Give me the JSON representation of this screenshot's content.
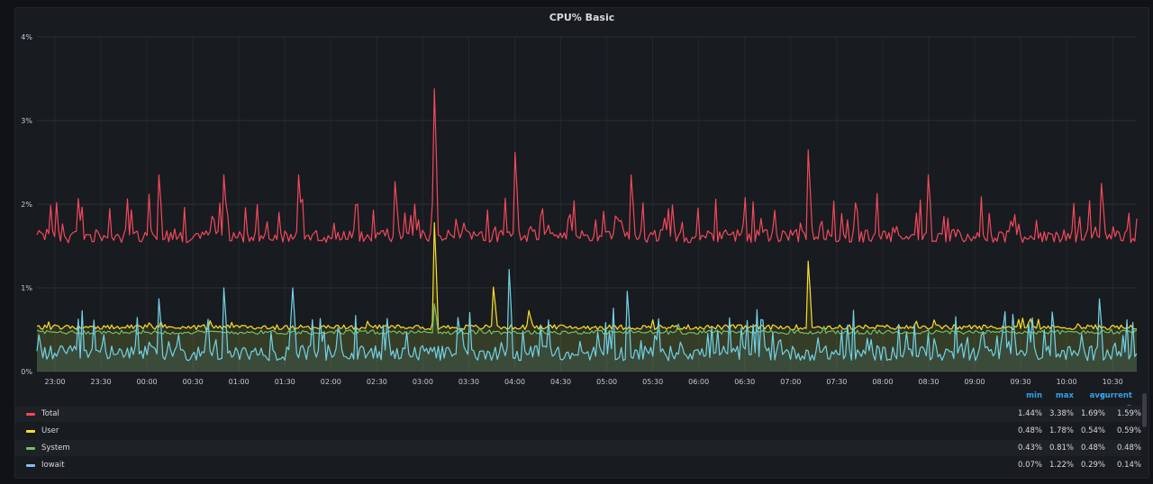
{
  "panel": {
    "title": "CPU% Basic"
  },
  "legend": {
    "headers": {
      "min": "min",
      "max": "max",
      "avg": "avg",
      "current": "current"
    },
    "rows": [
      {
        "name": "Total",
        "color": "#f2495c",
        "min": "1.44%",
        "max": "3.38%",
        "avg": "1.69%",
        "current": "1.59%"
      },
      {
        "name": "User",
        "color": "#fade2a",
        "min": "0.48%",
        "max": "1.78%",
        "avg": "0.54%",
        "current": "0.59%"
      },
      {
        "name": "System",
        "color": "#73bf69",
        "min": "0.43%",
        "max": "0.81%",
        "avg": "0.48%",
        "current": "0.48%"
      },
      {
        "name": "Iowait",
        "color": "#8ab8ff",
        "min": "0.07%",
        "max": "1.22%",
        "avg": "0.29%",
        "current": "0.14%"
      }
    ]
  },
  "chart_data": {
    "type": "line",
    "title": "CPU% Basic",
    "x_ticks": [
      "23:00",
      "23:30",
      "00:00",
      "00:30",
      "01:00",
      "01:30",
      "02:00",
      "02:30",
      "03:00",
      "03:30",
      "04:00",
      "04:30",
      "05:00",
      "05:30",
      "06:00",
      "06:30",
      "07:00",
      "07:30",
      "08:00",
      "08:30",
      "09:00",
      "09:30",
      "10:00",
      "10:30"
    ],
    "y_ticks": [
      "0%",
      "1%",
      "2%",
      "3%",
      "4%"
    ],
    "ylim": [
      0,
      4
    ],
    "grid": true,
    "legend_position": "bottom",
    "series": [
      {
        "name": "Total",
        "color": "#f2495c",
        "base": 1.62,
        "spikes": [
          [
            3.38,
            202
          ],
          [
            2.62,
            243
          ],
          [
            2.65,
            392
          ],
          [
            2.35,
            62
          ],
          [
            2.35,
            95
          ],
          [
            2.35,
            133
          ],
          [
            2.27,
            182
          ],
          [
            2.35,
            302
          ],
          [
            2.35,
            453
          ],
          [
            2.25,
            541
          ]
        ]
      },
      {
        "name": "User",
        "color": "#fade2a",
        "base": 0.53,
        "spikes": [
          [
            1.78,
            202
          ],
          [
            1.01,
            232
          ],
          [
            1.32,
            392
          ],
          [
            0.73,
            250
          ]
        ]
      },
      {
        "name": "System",
        "color": "#73bf69",
        "base": 0.47,
        "spikes": [
          [
            0.81,
            202
          ]
        ]
      },
      {
        "name": "Iowait",
        "color": "#73d2e6",
        "base": 0.22,
        "spikes": [
          [
            1.22,
            240
          ],
          [
            0.87,
            62
          ],
          [
            1.0,
            95
          ],
          [
            1.0,
            130
          ],
          [
            0.96,
            300
          ],
          [
            0.87,
            540
          ]
        ]
      }
    ]
  }
}
